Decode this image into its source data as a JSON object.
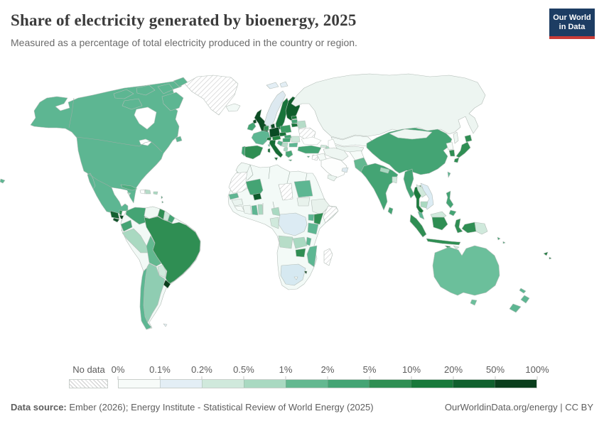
{
  "header": {
    "title": "Share of electricity generated by bioenergy, 2025",
    "subtitle": "Measured as a percentage of total electricity produced in the country or region."
  },
  "logo": {
    "line1": "Our World",
    "line2": "in Data",
    "bg_color": "#1d3d63",
    "accent_color": "#c93c37"
  },
  "legend": {
    "no_data_label": "No data",
    "tick_labels": [
      "0%",
      "0.1%",
      "0.2%",
      "0.5%",
      "1%",
      "2%",
      "5%",
      "10%",
      "20%",
      "50%",
      "100%"
    ],
    "bin_colors": [
      "#f7fbf9",
      "#e3eef5",
      "#d0e9dc",
      "#a9d9c1",
      "#63b890",
      "#44a474",
      "#2f8e53",
      "#19793b",
      "#10602e",
      "#0a3e1c"
    ]
  },
  "footer": {
    "source_prefix": "Data source:",
    "source_text": " Ember (2026); Energy Institute - Statistical Review of World Energy (2025)",
    "right_link": "OurWorldinData.org/energy",
    "separator": " | ",
    "license": "CC BY"
  },
  "chart_data": {
    "type": "choropleth",
    "title": "Share of electricity generated by bioenergy, 2025",
    "unit": "% of total electricity produced",
    "bin_edges": [
      "0%",
      "0.1%",
      "0.2%",
      "0.5%",
      "1%",
      "2%",
      "5%",
      "10%",
      "20%",
      "50%",
      "100%"
    ],
    "legend_position": "bottom",
    "values_by_bin": {
      "No data": [
        "Greenland",
        "Ukraine",
        "Moldova",
        "Syria",
        "Chad",
        "Mauritania",
        "Western Sahara",
        "Somalia",
        "Madagascar"
      ],
      "0-0.1%": [
        "Russia",
        "Venezuela",
        "Haiti",
        "Iceland",
        "Kazakhstan",
        "Uzbekistan",
        "Turkmenistan",
        "Iran",
        "Iraq",
        "Saudi Arabia",
        "Yemen",
        "Afghanistan",
        "Mongolia",
        "North Korea",
        "Morocco",
        "Algeria",
        "Libya",
        "Egypt",
        "Niger",
        "Nigeria",
        "Cote d'Ivoire",
        "Sierra Leone",
        "Guinea",
        "South Sudan",
        "Ethiopia",
        "Botswana",
        "Namibia",
        "Lesotho"
      ],
      "0.1-0.2%": [
        "Norway",
        "United Arab Emirates",
        "Oman",
        "South Africa",
        "Democratic Republic of Congo",
        "Vietnam",
        "Falkland Islands"
      ],
      "0.2-0.5%": [
        "Suriname",
        "Paraguay",
        "Costa Rica",
        "Romania",
        "Georgia",
        "Bangladesh",
        "Laos",
        "Malaysia (Borneo)",
        "Papua New Guinea",
        "Timor-Leste",
        "Republic of Congo"
      ],
      "0.5-1%": [
        "Peru",
        "Argentina",
        "Panama",
        "Jamaica",
        "Dominican Republic",
        "Puerto Rico",
        "Nepal",
        "Cambodia",
        "Azerbaijan",
        "Albania",
        "Serbia",
        "Belarus",
        "Togo",
        "Benin",
        "Cameroon",
        "Zambia",
        "Angola"
      ],
      "1-2%": [
        "United States",
        "Canada",
        "Mexico",
        "Chile",
        "Cuba",
        "France",
        "Bulgaria",
        "Croatia",
        "Taiwan",
        "Australia",
        "New Zealand",
        "New Caledonia",
        "Senegal",
        "Ghana",
        "Bolivia",
        "Pakistan",
        "Uganda",
        "Tanzania",
        "Sudan",
        "Malawi",
        "Mozambique"
      ],
      "2-5%": [
        "China",
        "India",
        "Sri Lanka",
        "Myanmar",
        "Philippines",
        "Turkey",
        "Cyprus",
        "Hungary",
        "Slovakia",
        "Ireland",
        "Portugal",
        "Mali",
        "Greece",
        "Latvia",
        "Colombia",
        "Ecuador",
        "French Guiana",
        "Solomon Islands",
        "Guadeloupe"
      ],
      "5-10%": [
        "Brazil",
        "Guyana",
        "Spain",
        "Poland",
        "Austria",
        "Belgium",
        "Netherlands",
        "Japan",
        "South Korea",
        "Indonesia",
        "Kenya",
        "Zimbabwe",
        "Belize"
      ],
      "10-20%": [
        "Thailand",
        "Sweden",
        "Czechia",
        "Switzerland",
        "Lithuania",
        "Estonia",
        "Italy",
        "Fiji"
      ],
      "20-50%": [
        "United Kingdom",
        "Germany",
        "Denmark",
        "Finland",
        "Guatemala",
        "El Salvador",
        "Honduras",
        "Nicaragua",
        "Burkina Faso"
      ],
      "50-100%": [
        "Uruguay",
        "Eswatini"
      ]
    }
  },
  "map": {
    "ocean_color": "#ffffff",
    "border_color": "#b3bdb7",
    "regions": {
      "north_america": {
        "name": "Canada, United States & Mexico",
        "bin": "1-2%",
        "color": "#5db692"
      },
      "guatemala": {
        "name": "Guatemala",
        "bin": "20-50%",
        "color": "#136030"
      },
      "belize": {
        "name": "Belize",
        "bin": "5-10%",
        "color": "#2f8e53"
      },
      "honduras": {
        "name": "Honduras",
        "bin": "20-50%",
        "color": "#0d4a24"
      },
      "elsalvador": {
        "name": "El Salvador",
        "bin": "20-50%",
        "color": "#11532a"
      },
      "nicaragua": {
        "name": "Nicaragua",
        "bin": "20-50%",
        "color": "#0d4a24"
      },
      "costarica": {
        "name": "Costa Rica",
        "bin": "0.2-0.5%",
        "color": "#dcefe6"
      },
      "panama": {
        "name": "Panama",
        "bin": "0.5-1%",
        "color": "#9ed3bb"
      },
      "cuba": {
        "name": "Cuba",
        "bin": "1-2%",
        "color": "#4fae80"
      },
      "jamaica": {
        "name": "Jamaica",
        "bin": "0.5-1%",
        "color": "#b5dcc8"
      },
      "haiti": {
        "name": "Haiti",
        "bin": "0-0.1%",
        "color": "#fbfdfc"
      },
      "dominicanrep": {
        "name": "Dominican Republic",
        "bin": "0.5-1%",
        "color": "#b5dcc8"
      },
      "puertorico": {
        "name": "Puerto Rico",
        "bin": "0.5-1%",
        "color": "#a9d9c1"
      },
      "antilles": {
        "name": "Lesser Antilles",
        "bin": "2-5%",
        "color": "#44a474"
      },
      "colombia": {
        "name": "Colombia",
        "bin": "2-5%",
        "color": "#44a474"
      },
      "venezuela": {
        "name": "Venezuela",
        "bin": "0-0.1%",
        "color": "#eff8f3"
      },
      "guyana": {
        "name": "Guyana",
        "bin": "5-10%",
        "color": "#2f8e53"
      },
      "suriname": {
        "name": "Suriname",
        "bin": "0.2-0.5%",
        "color": "#d0e9dc"
      },
      "frenchguiana": {
        "name": "French Guiana",
        "bin": "2-5%",
        "color": "#44a474"
      },
      "ecuador": {
        "name": "Ecuador",
        "bin": "2-5%",
        "color": "#44a474"
      },
      "peru": {
        "name": "Peru",
        "bin": "0.5-1%",
        "color": "#a9d9c1"
      },
      "brazil": {
        "name": "Brazil",
        "bin": "5-10%",
        "color": "#2f8e53"
      },
      "bolivia": {
        "name": "Bolivia",
        "bin": "1-2%",
        "color": "#63b890"
      },
      "paraguay": {
        "name": "Paraguay",
        "bin": "0.2-0.5%",
        "color": "#d0e9dc"
      },
      "uruguay": {
        "name": "Uruguay",
        "bin": "50-100%",
        "color": "#0a3e1c"
      },
      "chile": {
        "name": "Chile",
        "bin": "1-2%",
        "color": "#5db692"
      },
      "argentina": {
        "name": "Argentina",
        "bin": "0.5-1%",
        "color": "#8fcdb2"
      },
      "falklands": {
        "name": "Falkland Islands",
        "bin": "0.1-0.2%",
        "color": "#e3eef5"
      },
      "iceland": {
        "name": "Iceland",
        "bin": "0-0.1%",
        "color": "#f2f9f6"
      },
      "svalbard": {
        "name": "Svalbard",
        "bin": "0.1-0.2%",
        "color": "#e3eef5"
      },
      "ireland": {
        "name": "Ireland",
        "bin": "2-5%",
        "color": "#44a474"
      },
      "uk": {
        "name": "United Kingdom",
        "bin": "20-50%",
        "color": "#0c4c24"
      },
      "norway": {
        "name": "Norway",
        "bin": "0.1-0.2%",
        "color": "#dde9f0"
      },
      "sweden": {
        "name": "Sweden",
        "bin": "10-20%",
        "color": "#18733a"
      },
      "finland": {
        "name": "Finland",
        "bin": "20-50%",
        "color": "#0f5e2c"
      },
      "denmark": {
        "name": "Denmark",
        "bin": "20-50%",
        "color": "#0c4c24"
      },
      "estonia": {
        "name": "Estonia",
        "bin": "10-20%",
        "color": "#19793b"
      },
      "latvia": {
        "name": "Latvia",
        "bin": "2-5%",
        "color": "#44a474"
      },
      "lithuania": {
        "name": "Lithuania",
        "bin": "10-20%",
        "color": "#18733a"
      },
      "belarus": {
        "name": "Belarus",
        "bin": "0.5-1%",
        "color": "#b5dcc8"
      },
      "poland": {
        "name": "Poland",
        "bin": "5-10%",
        "color": "#3b9c64"
      },
      "germany": {
        "name": "Germany",
        "bin": "20-50%",
        "color": "#0a4a23"
      },
      "benelux": {
        "name": "Belgium & Netherlands",
        "bin": "5-10%",
        "color": "#2f8e53"
      },
      "france": {
        "name": "France",
        "bin": "1-2%",
        "color": "#5db692"
      },
      "spain": {
        "name": "Spain",
        "bin": "5-10%",
        "color": "#2f8e53"
      },
      "portugal": {
        "name": "Portugal",
        "bin": "2-5%",
        "color": "#44a474"
      },
      "italy": {
        "name": "Italy",
        "bin": "10-20%",
        "color": "#156b34"
      },
      "switzerland": {
        "name": "Switzerland",
        "bin": "10-20%",
        "color": "#18733a"
      },
      "austria": {
        "name": "Austria",
        "bin": "5-10%",
        "color": "#22823f"
      },
      "czechia": {
        "name": "Czechia",
        "bin": "10-20%",
        "color": "#18733a"
      },
      "slovakia": {
        "name": "Slovakia",
        "bin": "2-5%",
        "color": "#44a474"
      },
      "hungary": {
        "name": "Hungary",
        "bin": "2-5%",
        "color": "#44a474"
      },
      "romania": {
        "name": "Romania",
        "bin": "0.2-0.5%",
        "color": "#cde7d9"
      },
      "croatia": {
        "name": "Croatia",
        "bin": "1-2%",
        "color": "#58b28b"
      },
      "serbia": {
        "name": "Serbia",
        "bin": "0.5-1%",
        "color": "#b5dcc8"
      },
      "albania": {
        "name": "Albania & North Macedonia",
        "bin": "0.5-1%",
        "color": "#a9d9c1"
      },
      "greece": {
        "name": "Greece",
        "bin": "2-5%",
        "color": "#4aa878"
      },
      "bulgaria": {
        "name": "Bulgaria",
        "bin": "1-2%",
        "color": "#5db692"
      },
      "turkey": {
        "name": "Turkey",
        "bin": "2-5%",
        "color": "#44a474"
      },
      "cyprus": {
        "name": "Cyprus",
        "bin": "2-5%",
        "color": "#44a474"
      },
      "georgia": {
        "name": "Georgia",
        "bin": "0.2-0.5%",
        "color": "#d0e9dc"
      },
      "azerbaijan": {
        "name": "Azerbaijan",
        "bin": "0.5-1%",
        "color": "#a9d9c1"
      },
      "russia": {
        "name": "Russia",
        "bin": "0-0.1%",
        "color": "#edf5f1"
      },
      "sakhalin": {
        "name": "Sakhalin (Russia)",
        "bin": "0-0.1%",
        "color": "#edf5f1"
      },
      "kazakhstan": {
        "name": "Kazakhstan",
        "bin": "0-0.1%",
        "color": "#f3faf7"
      },
      "centralasia": {
        "name": "Central Asia",
        "bin": "0-0.1%",
        "color": "#eaf4ef"
      },
      "iran": {
        "name": "Iran",
        "bin": "0-0.1%",
        "color": "#eef6f2"
      },
      "iraq": {
        "name": "Iraq",
        "bin": "0-0.1%",
        "color": "#f4faf7"
      },
      "saudiarabia": {
        "name": "Saudi Arabia",
        "bin": "0-0.1%",
        "color": "#fdfefd"
      },
      "uae_oman": {
        "name": "UAE & Oman",
        "bin": "0.1-0.2%",
        "color": "#dde9f0"
      },
      "yemen": {
        "name": "Yemen",
        "bin": "0-0.1%",
        "color": "#eaf4ef"
      },
      "afghanistan": {
        "name": "Afghanistan",
        "bin": "0-0.1%",
        "color": "#f6fbf8"
      },
      "pakistan": {
        "name": "Pakistan",
        "bin": "1-2%",
        "color": "#63b890"
      },
      "india": {
        "name": "India",
        "bin": "2-5%",
        "color": "#44a474"
      },
      "nepal": {
        "name": "Nepal",
        "bin": "0.5-1%",
        "color": "#a9d9c1"
      },
      "bangladesh": {
        "name": "Bangladesh",
        "bin": "0.2-0.5%",
        "color": "#d0e9dc"
      },
      "srilanka": {
        "name": "Sri Lanka",
        "bin": "2-5%",
        "color": "#44a474"
      },
      "myanmar": {
        "name": "Myanmar",
        "bin": "2-5%",
        "color": "#44a474"
      },
      "thailand": {
        "name": "Thailand",
        "bin": "10-20%",
        "color": "#1c7a3d"
      },
      "laos": {
        "name": "Laos",
        "bin": "0.2-0.5%",
        "color": "#d0e9dc"
      },
      "vietnam": {
        "name": "Vietnam",
        "bin": "0.1-0.2%",
        "color": "#dcecf4"
      },
      "cambodia": {
        "name": "Cambodia",
        "bin": "0.5-1%",
        "color": "#a9d9c1"
      },
      "malaysia_pen": {
        "name": "Malaysia (peninsula)",
        "bin": "1-2%",
        "color": "#5db692"
      },
      "malaysia_borneo": {
        "name": "Malaysia (Borneo)",
        "bin": "0.2-0.5%",
        "color": "#d0e9dc"
      },
      "indonesia": {
        "name": "Indonesia",
        "bin": "5-10%",
        "color": "#2f8e53"
      },
      "png": {
        "name": "Papua New Guinea",
        "bin": "0.2-0.5%",
        "color": "#d0e9dc"
      },
      "timor": {
        "name": "Timor-Leste",
        "bin": "0.2-0.5%",
        "color": "#d0e9dc"
      },
      "philippines": {
        "name": "Philippines",
        "bin": "2-5%",
        "color": "#44a474"
      },
      "taiwan": {
        "name": "Taiwan",
        "bin": "1-2%",
        "color": "#5db692"
      },
      "china": {
        "name": "China",
        "bin": "2-5%",
        "color": "#44a474"
      },
      "mongolia": {
        "name": "Mongolia",
        "bin": "0-0.1%",
        "color": "#eef6f2"
      },
      "northkorea": {
        "name": "North Korea",
        "bin": "0-0.1%",
        "color": "#f6fbf8"
      },
      "southkorea": {
        "name": "South Korea",
        "bin": "5-10%",
        "color": "#2f8e53"
      },
      "japan": {
        "name": "Japan",
        "bin": "5-10%",
        "color": "#2f8e53"
      },
      "australia": {
        "name": "Australia",
        "bin": "1-2%",
        "color": "#6bbf9b"
      },
      "newzealand": {
        "name": "New Zealand",
        "bin": "1-2%",
        "color": "#5db692"
      },
      "fiji": {
        "name": "Fiji",
        "bin": "10-20%",
        "color": "#1c7a3d"
      },
      "newcaledonia": {
        "name": "New Caledonia",
        "bin": "1-2%",
        "color": "#5db692"
      },
      "solomons": {
        "name": "Solomon Islands",
        "bin": "2-5%",
        "color": "#44a474"
      },
      "pacific_fragment": {
        "name": "Pacific island (wrap)",
        "bin": "1-2%",
        "color": "#5db692"
      },
      "morocco": {
        "name": "Morocco",
        "bin": "0-0.1%",
        "color": "#f0f8f4"
      },
      "northafrica": {
        "name": "Algeria, Libya, Egypt & Sahel",
        "bin": "0-0.1%",
        "color": "#f3faf7"
      },
      "mali": {
        "name": "Mali",
        "bin": "2-5%",
        "color": "#44a474"
      },
      "burkinafaso": {
        "name": "Burkina Faso",
        "bin": "20-50%",
        "color": "#0d5b2b"
      },
      "senegal": {
        "name": "Senegal",
        "bin": "1-2%",
        "color": "#5fb592"
      },
      "guinea": {
        "name": "Guinea",
        "bin": "0-0.1%",
        "color": "#eaf4ef"
      },
      "sierraleone": {
        "name": "Sierra Leone & Liberia",
        "bin": "0-0.1%",
        "color": "#f6fbf8"
      },
      "cotedivoire": {
        "name": "Cote d'Ivoire",
        "bin": "0-0.1%",
        "color": "#eef6f2"
      },
      "ghana": {
        "name": "Ghana",
        "bin": "1-2%",
        "color": "#5db692"
      },
      "togobenin": {
        "name": "Togo & Benin",
        "bin": "0.5-1%",
        "color": "#a9d9c1"
      },
      "sudan": {
        "name": "Sudan",
        "bin": "1-2%",
        "color": "#5db692"
      },
      "southsudan": {
        "name": "South Sudan",
        "bin": "0-0.1%",
        "color": "#e8f2ec"
      },
      "ethiopia": {
        "name": "Ethiopia",
        "bin": "0-0.1%",
        "color": "#e8f2ec"
      },
      "kenya": {
        "name": "Kenya",
        "bin": "5-10%",
        "color": "#2f8e53"
      },
      "uganda": {
        "name": "Uganda",
        "bin": "1-2%",
        "color": "#5db692"
      },
      "tanzania": {
        "name": "Tanzania",
        "bin": "1-2%",
        "color": "#5db692"
      },
      "drc": {
        "name": "Democratic Republic of Congo",
        "bin": "0.1-0.2%",
        "color": "#dcebf3"
      },
      "congo": {
        "name": "Republic of Congo & Gabon",
        "bin": "0.2-0.5%",
        "color": "#d0e9dc"
      },
      "cameroon": {
        "name": "Cameroon",
        "bin": "0.5-1%",
        "color": "#a9d9c1"
      },
      "angola": {
        "name": "Angola",
        "bin": "0.5-1%",
        "color": "#b7ddc8"
      },
      "zambia": {
        "name": "Zambia",
        "bin": "0.5-1%",
        "color": "#a9d9c1"
      },
      "malawi": {
        "name": "Malawi",
        "bin": "1-2%",
        "color": "#5db692"
      },
      "mozambique": {
        "name": "Mozambique",
        "bin": "1-2%",
        "color": "#5db692"
      },
      "zimbabwe": {
        "name": "Zimbabwe",
        "bin": "5-10%",
        "color": "#2f8e53"
      },
      "southafrica": {
        "name": "South Africa",
        "bin": "0.1-0.2%",
        "color": "#d6e9f1"
      },
      "lesotho": {
        "name": "Lesotho",
        "bin": "0-0.1%",
        "color": "#f6fbf8"
      },
      "eswatini": {
        "name": "Eswatini",
        "bin": "50-100%",
        "color": "#0a3e1c"
      },
      "greenland": {
        "name": "Greenland",
        "bin": "No data"
      },
      "ukraine": {
        "name": "Ukraine & Moldova",
        "bin": "No data"
      },
      "syria": {
        "name": "Syria",
        "bin": "No data"
      },
      "chad": {
        "name": "Chad",
        "bin": "No data"
      },
      "mauritania": {
        "name": "Mauritania & Western Sahara",
        "bin": "No data"
      },
      "somalia": {
        "name": "Somalia",
        "bin": "No data"
      },
      "madagascar": {
        "name": "Madagascar",
        "bin": "No data"
      }
    }
  }
}
